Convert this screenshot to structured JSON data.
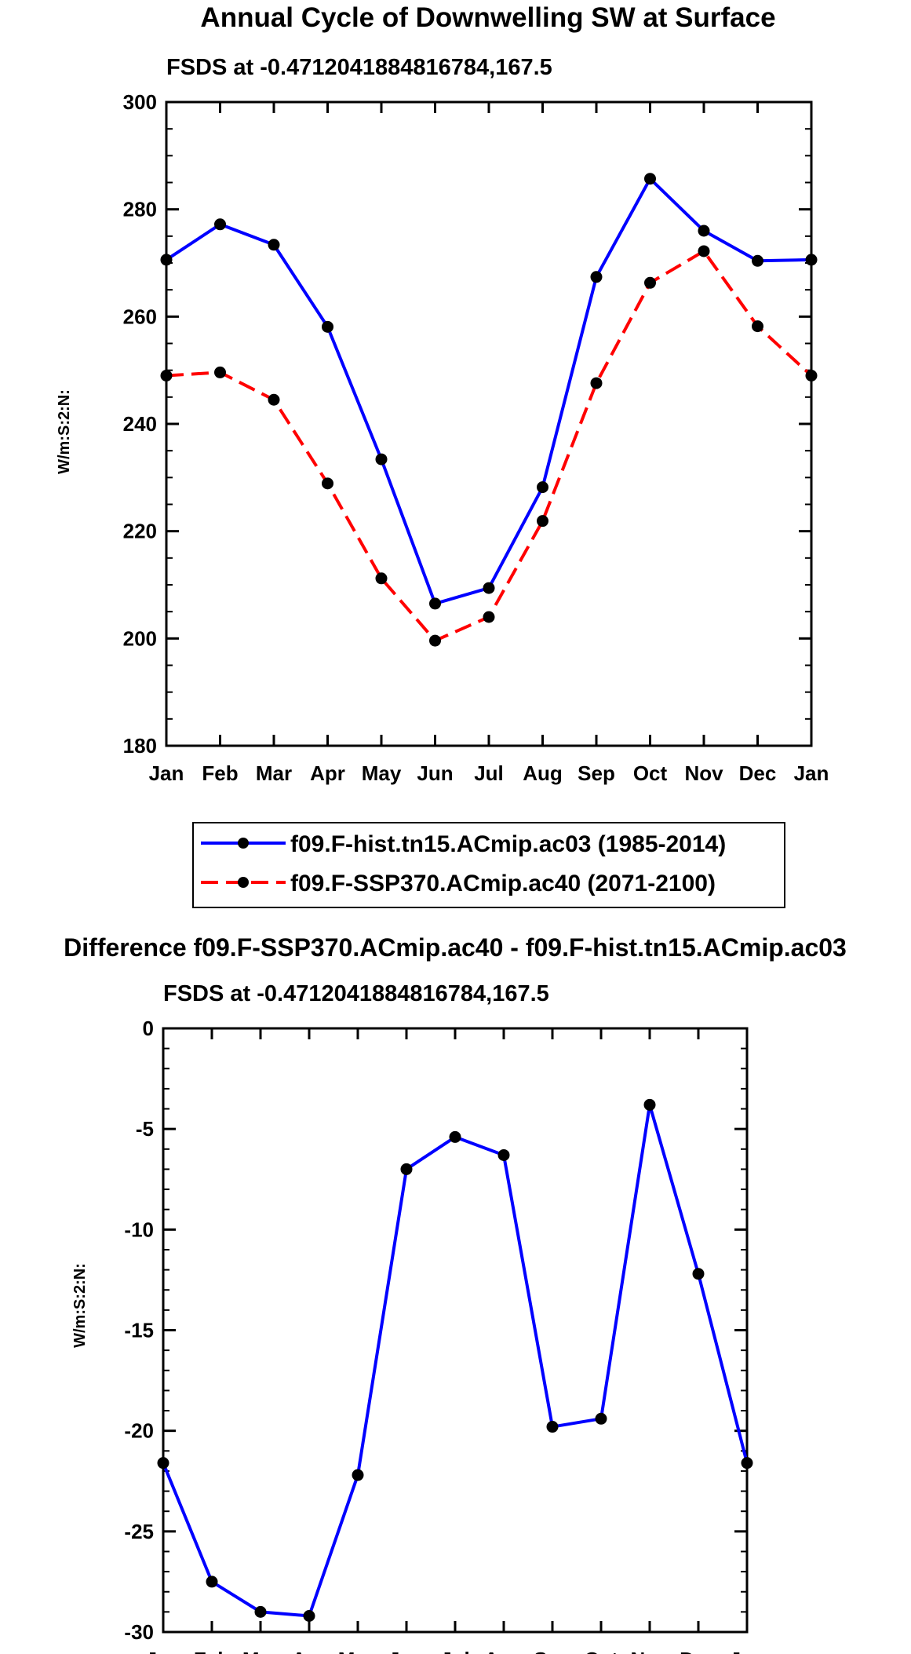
{
  "chart_data": [
    {
      "type": "line",
      "title": "Annual Cycle of Downwelling SW at Surface",
      "subtitle": "FSDS at -0.4712041884816784,167.5",
      "xlabel": "",
      "ylabel": "W/m:S:2:N:",
      "categories": [
        "Jan",
        "Feb",
        "Mar",
        "Apr",
        "May",
        "Jun",
        "Jul",
        "Aug",
        "Sep",
        "Oct",
        "Nov",
        "Dec",
        "Jan"
      ],
      "ylim": [
        180,
        300
      ],
      "yticks": [
        180,
        200,
        220,
        240,
        260,
        280,
        300
      ],
      "ytick_labels": [
        "180",
        "200",
        "220",
        "240",
        "260",
        "280",
        "300"
      ],
      "series": [
        {
          "name": "f09.F-hist.tn15.ACmip.ac03 (1985-2014)",
          "color": "#0000ff",
          "style": "solid",
          "values": [
            270.6,
            277.2,
            273.4,
            258.1,
            233.4,
            206.5,
            209.4,
            228.2,
            267.4,
            285.7,
            276.0,
            270.4,
            270.6
          ]
        },
        {
          "name": "f09.F-SSP370.ACmip.ac40 (2071-2100)",
          "color": "#ff0000",
          "style": "dashed",
          "values": [
            249.0,
            249.6,
            244.5,
            228.9,
            211.2,
            199.6,
            204.0,
            221.9,
            247.6,
            266.3,
            272.2,
            258.2,
            249.0
          ]
        }
      ],
      "legend": "below"
    },
    {
      "type": "line",
      "title": "Difference f09.F-SSP370.ACmip.ac40 - f09.F-hist.tn15.ACmip.ac03",
      "subtitle": "FSDS at -0.4712041884816784,167.5",
      "xlabel": "",
      "ylabel": "W/m:S:2:N:",
      "categories": [
        "Jan",
        "Feb",
        "Mar",
        "Apr",
        "May",
        "Jun",
        "Jul",
        "Aug",
        "Sep",
        "Oct",
        "Nov",
        "Dec",
        "Jan"
      ],
      "ylim": [
        -30,
        0
      ],
      "yticks": [
        -30,
        -25,
        -20,
        -15,
        -10,
        -5,
        0
      ],
      "ytick_labels": [
        "-30",
        "-25",
        "-20",
        "-15",
        "-10",
        "-5",
        "0"
      ],
      "series": [
        {
          "name": "Difference",
          "color": "#0000ff",
          "style": "solid",
          "values": [
            -21.6,
            -27.5,
            -29.0,
            -29.2,
            -22.2,
            -7.0,
            -5.4,
            -6.3,
            -19.8,
            -19.4,
            -3.8,
            -12.2,
            -21.6
          ]
        }
      ]
    }
  ]
}
